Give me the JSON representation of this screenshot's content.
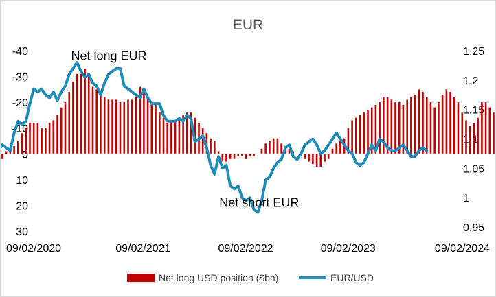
{
  "chart_data": {
    "type": "bar",
    "title": "EUR",
    "x_range": [
      "09/02/2020",
      "09/02/2024"
    ],
    "x_tick_labels": [
      "09/02/2020",
      "09/02/2021",
      "09/02/2022",
      "09/02/2023",
      "09/02/2024"
    ],
    "left_axis": {
      "ticks": [
        -40,
        -30,
        -20,
        -10,
        0,
        10,
        20,
        30
      ],
      "tick_labels": [
        "-40",
        "-30",
        "-20",
        "-10",
        "0",
        "10",
        "20",
        "30"
      ],
      "range": [
        30,
        -40
      ],
      "inverted": true
    },
    "right_axis": {
      "ticks": [
        0.95,
        1,
        1.05,
        1.1,
        1.15,
        1.2,
        1.25
      ],
      "tick_labels": [
        "0.95",
        "1",
        "1.05",
        "1.1",
        "1.15",
        "1.2",
        "1.25"
      ],
      "range": [
        0.95,
        1.25
      ]
    },
    "grid": false,
    "legend_position": "bottom",
    "annotations": [
      {
        "text": "Net long EUR",
        "x": "2020-12-20",
        "y": -38
      },
      {
        "text": "Net short EUR",
        "x": "2022-06-01",
        "y": 19
      }
    ],
    "series": [
      {
        "name": "Net long USD position ($bn)",
        "type": "bar",
        "axis": "left",
        "color": "#c00000",
        "points": [
          [
            "2020-02-09",
            10
          ],
          [
            "2020-02-23",
            11
          ],
          [
            "2020-03-08",
            16
          ],
          [
            "2020-03-22",
            12
          ],
          [
            "2020-04-05",
            12
          ],
          [
            "2020-04-19",
            2
          ],
          [
            "2020-05-03",
            -1
          ],
          [
            "2020-05-17",
            -2
          ],
          [
            "2020-05-31",
            -3
          ],
          [
            "2020-06-14",
            -5
          ],
          [
            "2020-06-28",
            -8
          ],
          [
            "2020-07-12",
            -10
          ],
          [
            "2020-07-26",
            -12
          ],
          [
            "2020-08-09",
            -12
          ],
          [
            "2020-08-23",
            -12
          ],
          [
            "2020-09-06",
            -10
          ],
          [
            "2020-09-20",
            -10
          ],
          [
            "2020-10-04",
            -12
          ],
          [
            "2020-10-18",
            -13
          ],
          [
            "2020-11-01",
            -15
          ],
          [
            "2020-11-15",
            -18
          ],
          [
            "2020-11-29",
            -20
          ],
          [
            "2020-12-13",
            -24
          ],
          [
            "2020-12-27",
            -28
          ],
          [
            "2021-01-10",
            -31
          ],
          [
            "2021-01-24",
            -31
          ],
          [
            "2021-02-07",
            -33
          ],
          [
            "2021-02-21",
            -30
          ],
          [
            "2021-03-07",
            -26
          ],
          [
            "2021-03-21",
            -25
          ],
          [
            "2021-04-04",
            -24
          ],
          [
            "2021-04-18",
            -22
          ],
          [
            "2021-05-02",
            -21
          ],
          [
            "2021-05-16",
            -21
          ],
          [
            "2021-05-30",
            -21
          ],
          [
            "2021-06-13",
            -20
          ],
          [
            "2021-06-27",
            -20
          ],
          [
            "2021-07-11",
            -21
          ],
          [
            "2021-07-25",
            -21
          ],
          [
            "2021-08-08",
            -22
          ],
          [
            "2021-08-22",
            -26
          ],
          [
            "2021-09-05",
            -25
          ],
          [
            "2021-09-19",
            -22
          ],
          [
            "2021-10-03",
            -20
          ],
          [
            "2021-10-17",
            -19
          ],
          [
            "2021-10-31",
            -16
          ],
          [
            "2021-11-14",
            -14
          ],
          [
            "2021-11-28",
            -12
          ],
          [
            "2021-12-12",
            -13
          ],
          [
            "2021-12-26",
            -13
          ],
          [
            "2022-01-09",
            -14
          ],
          [
            "2022-01-23",
            -15
          ],
          [
            "2022-02-06",
            -16
          ],
          [
            "2022-02-20",
            -16
          ],
          [
            "2022-03-06",
            -14
          ],
          [
            "2022-03-20",
            -12
          ],
          [
            "2022-04-03",
            -10
          ],
          [
            "2022-04-17",
            -8
          ],
          [
            "2022-05-01",
            -6
          ],
          [
            "2022-05-15",
            -5
          ],
          [
            "2022-05-29",
            -1
          ],
          [
            "2022-06-12",
            3
          ],
          [
            "2022-06-26",
            3
          ],
          [
            "2022-07-10",
            2
          ],
          [
            "2022-07-24",
            2
          ],
          [
            "2022-08-07",
            1
          ],
          [
            "2022-08-21",
            1
          ],
          [
            "2022-09-04",
            2
          ],
          [
            "2022-09-18",
            1
          ],
          [
            "2022-10-02",
            1
          ],
          [
            "2022-10-16",
            0
          ],
          [
            "2022-10-30",
            -2
          ],
          [
            "2022-11-13",
            -4
          ],
          [
            "2022-11-27",
            -5
          ],
          [
            "2022-12-11",
            -6
          ],
          [
            "2022-12-25",
            -6
          ],
          [
            "2023-01-08",
            -4
          ],
          [
            "2023-01-22",
            -3
          ],
          [
            "2023-02-05",
            -2
          ],
          [
            "2023-02-19",
            -1
          ],
          [
            "2023-03-05",
            0
          ],
          [
            "2023-03-19",
            1
          ],
          [
            "2023-04-02",
            2
          ],
          [
            "2023-04-16",
            3
          ],
          [
            "2023-04-30",
            4
          ],
          [
            "2023-05-14",
            5
          ],
          [
            "2023-05-28",
            5
          ],
          [
            "2023-06-11",
            3
          ],
          [
            "2023-06-25",
            2
          ],
          [
            "2023-07-09",
            -2
          ],
          [
            "2023-07-23",
            -4
          ],
          [
            "2023-08-06",
            -5
          ],
          [
            "2023-08-20",
            -6
          ],
          [
            "2023-09-03",
            -10
          ],
          [
            "2023-09-17",
            -13
          ],
          [
            "2023-10-01",
            -14
          ],
          [
            "2023-10-15",
            -15
          ],
          [
            "2023-10-29",
            -16
          ],
          [
            "2023-11-12",
            -17
          ],
          [
            "2023-11-26",
            -18
          ],
          [
            "2023-12-10",
            -19
          ],
          [
            "2023-12-24",
            -20
          ],
          [
            "2024-01-07",
            -22
          ],
          [
            "2024-01-21",
            -22
          ],
          [
            "2024-02-04",
            -21
          ],
          [
            "2024-02-18",
            -20
          ],
          [
            "2024-03-03",
            -20
          ],
          [
            "2024-03-17",
            -19
          ],
          [
            "2024-03-31",
            -21
          ],
          [
            "2024-04-14",
            -22
          ],
          [
            "2024-04-28",
            -23
          ],
          [
            "2024-05-12",
            -25
          ],
          [
            "2024-05-26",
            -24
          ],
          [
            "2024-06-09",
            -22
          ],
          [
            "2024-06-23",
            -20
          ],
          [
            "2024-07-07",
            -18
          ],
          [
            "2024-07-21",
            -20
          ],
          [
            "2024-08-04",
            -23
          ],
          [
            "2024-08-18",
            -25
          ],
          [
            "2024-09-01",
            -24
          ],
          [
            "2024-09-15",
            -22
          ],
          [
            "2024-09-29",
            -20
          ],
          [
            "2024-10-13",
            -16
          ],
          [
            "2024-10-27",
            -13
          ],
          [
            "2024-11-10",
            -11
          ],
          [
            "2024-11-24",
            -12
          ],
          [
            "2024-12-08",
            -14
          ],
          [
            "2024-12-22",
            -20
          ],
          [
            "2025-01-05",
            -20
          ],
          [
            "2025-01-19",
            -18
          ],
          [
            "2025-02-02",
            -16
          ],
          [
            "2025-02-16",
            -16
          ],
          [
            "2025-03-02",
            -14
          ],
          [
            "2025-03-16",
            -12
          ],
          [
            "2025-03-30",
            -9
          ],
          [
            "2025-04-13",
            -8
          ],
          [
            "2025-04-27",
            -7
          ],
          [
            "2025-05-11",
            -9
          ]
        ]
      },
      {
        "name": "EUR/USD",
        "type": "line",
        "axis": "right",
        "color": "#1f8bb8",
        "points": [
          [
            "2020-02-09",
            1.095
          ],
          [
            "2020-02-23",
            1.083
          ],
          [
            "2020-03-08",
            1.128
          ],
          [
            "2020-03-22",
            1.075
          ],
          [
            "2020-04-05",
            1.08
          ],
          [
            "2020-04-19",
            1.09
          ],
          [
            "2020-05-03",
            1.085
          ],
          [
            "2020-05-17",
            1.08
          ],
          [
            "2020-05-31",
            1.11
          ],
          [
            "2020-06-14",
            1.13
          ],
          [
            "2020-06-28",
            1.125
          ],
          [
            "2020-07-12",
            1.13
          ],
          [
            "2020-07-26",
            1.16
          ],
          [
            "2020-08-09",
            1.185
          ],
          [
            "2020-08-23",
            1.18
          ],
          [
            "2020-09-06",
            1.185
          ],
          [
            "2020-09-20",
            1.175
          ],
          [
            "2020-10-04",
            1.17
          ],
          [
            "2020-10-18",
            1.18
          ],
          [
            "2020-11-01",
            1.165
          ],
          [
            "2020-11-15",
            1.18
          ],
          [
            "2020-11-29",
            1.19
          ],
          [
            "2020-12-13",
            1.21
          ],
          [
            "2020-12-27",
            1.22
          ],
          [
            "2021-01-10",
            1.23
          ],
          [
            "2021-01-24",
            1.215
          ],
          [
            "2021-02-07",
            1.205
          ],
          [
            "2021-02-21",
            1.21
          ],
          [
            "2021-03-07",
            1.195
          ],
          [
            "2021-03-21",
            1.19
          ],
          [
            "2021-04-04",
            1.175
          ],
          [
            "2021-04-18",
            1.195
          ],
          [
            "2021-05-02",
            1.21
          ],
          [
            "2021-05-16",
            1.215
          ],
          [
            "2021-05-30",
            1.22
          ],
          [
            "2021-06-13",
            1.22
          ],
          [
            "2021-06-27",
            1.19
          ],
          [
            "2021-07-11",
            1.185
          ],
          [
            "2021-07-25",
            1.18
          ],
          [
            "2021-08-08",
            1.175
          ],
          [
            "2021-08-22",
            1.17
          ],
          [
            "2021-09-05",
            1.185
          ],
          [
            "2021-09-19",
            1.17
          ],
          [
            "2021-10-03",
            1.16
          ],
          [
            "2021-10-17",
            1.16
          ],
          [
            "2021-10-31",
            1.16
          ],
          [
            "2021-11-14",
            1.14
          ],
          [
            "2021-11-28",
            1.13
          ],
          [
            "2021-12-12",
            1.13
          ],
          [
            "2021-12-26",
            1.13
          ],
          [
            "2022-01-09",
            1.135
          ],
          [
            "2022-01-23",
            1.13
          ],
          [
            "2022-02-06",
            1.14
          ],
          [
            "2022-02-20",
            1.135
          ],
          [
            "2022-03-06",
            1.095
          ],
          [
            "2022-03-20",
            1.1
          ],
          [
            "2022-04-03",
            1.105
          ],
          [
            "2022-04-17",
            1.085
          ],
          [
            "2022-05-01",
            1.055
          ],
          [
            "2022-05-15",
            1.04
          ],
          [
            "2022-05-29",
            1.07
          ],
          [
            "2022-06-12",
            1.05
          ],
          [
            "2022-06-26",
            1.055
          ],
          [
            "2022-07-10",
            1.02
          ],
          [
            "2022-07-24",
            1.015
          ],
          [
            "2022-08-07",
            1.02
          ],
          [
            "2022-08-21",
            1.0
          ],
          [
            "2022-09-04",
            0.995
          ],
          [
            "2022-09-18",
            1.0
          ],
          [
            "2022-10-02",
            0.98
          ],
          [
            "2022-10-16",
            0.975
          ],
          [
            "2022-10-30",
            0.995
          ],
          [
            "2022-11-13",
            1.03
          ],
          [
            "2022-11-27",
            1.035
          ],
          [
            "2022-12-11",
            1.05
          ],
          [
            "2022-12-25",
            1.06
          ],
          [
            "2023-01-08",
            1.065
          ],
          [
            "2023-01-22",
            1.085
          ],
          [
            "2023-02-05",
            1.09
          ],
          [
            "2023-02-19",
            1.07
          ],
          [
            "2023-03-05",
            1.065
          ],
          [
            "2023-03-19",
            1.075
          ],
          [
            "2023-04-02",
            1.09
          ],
          [
            "2023-04-16",
            1.095
          ],
          [
            "2023-04-30",
            1.1
          ],
          [
            "2023-05-14",
            1.09
          ],
          [
            "2023-05-28",
            1.075
          ],
          [
            "2023-06-11",
            1.08
          ],
          [
            "2023-06-25",
            1.09
          ],
          [
            "2023-07-09",
            1.1
          ],
          [
            "2023-07-23",
            1.11
          ],
          [
            "2023-08-06",
            1.1
          ],
          [
            "2023-08-20",
            1.09
          ],
          [
            "2023-09-03",
            1.08
          ],
          [
            "2023-09-17",
            1.075
          ],
          [
            "2023-10-01",
            1.06
          ],
          [
            "2023-10-15",
            1.055
          ],
          [
            "2023-10-29",
            1.06
          ],
          [
            "2023-11-12",
            1.075
          ],
          [
            "2023-11-26",
            1.09
          ],
          [
            "2023-12-10",
            1.08
          ],
          [
            "2023-12-24",
            1.1
          ],
          [
            "2024-01-07",
            1.095
          ],
          [
            "2024-01-21",
            1.085
          ],
          [
            "2024-02-04",
            1.08
          ],
          [
            "2024-02-18",
            1.08
          ],
          [
            "2024-03-03",
            1.085
          ],
          [
            "2024-03-17",
            1.09
          ],
          [
            "2024-03-31",
            1.08
          ],
          [
            "2024-04-14",
            1.07
          ],
          [
            "2024-04-28",
            1.07
          ],
          [
            "2024-05-12",
            1.08
          ],
          [
            "2024-05-26",
            1.085
          ],
          [
            "2024-06-09",
            1.08
          ]
        ]
      }
    ]
  }
}
